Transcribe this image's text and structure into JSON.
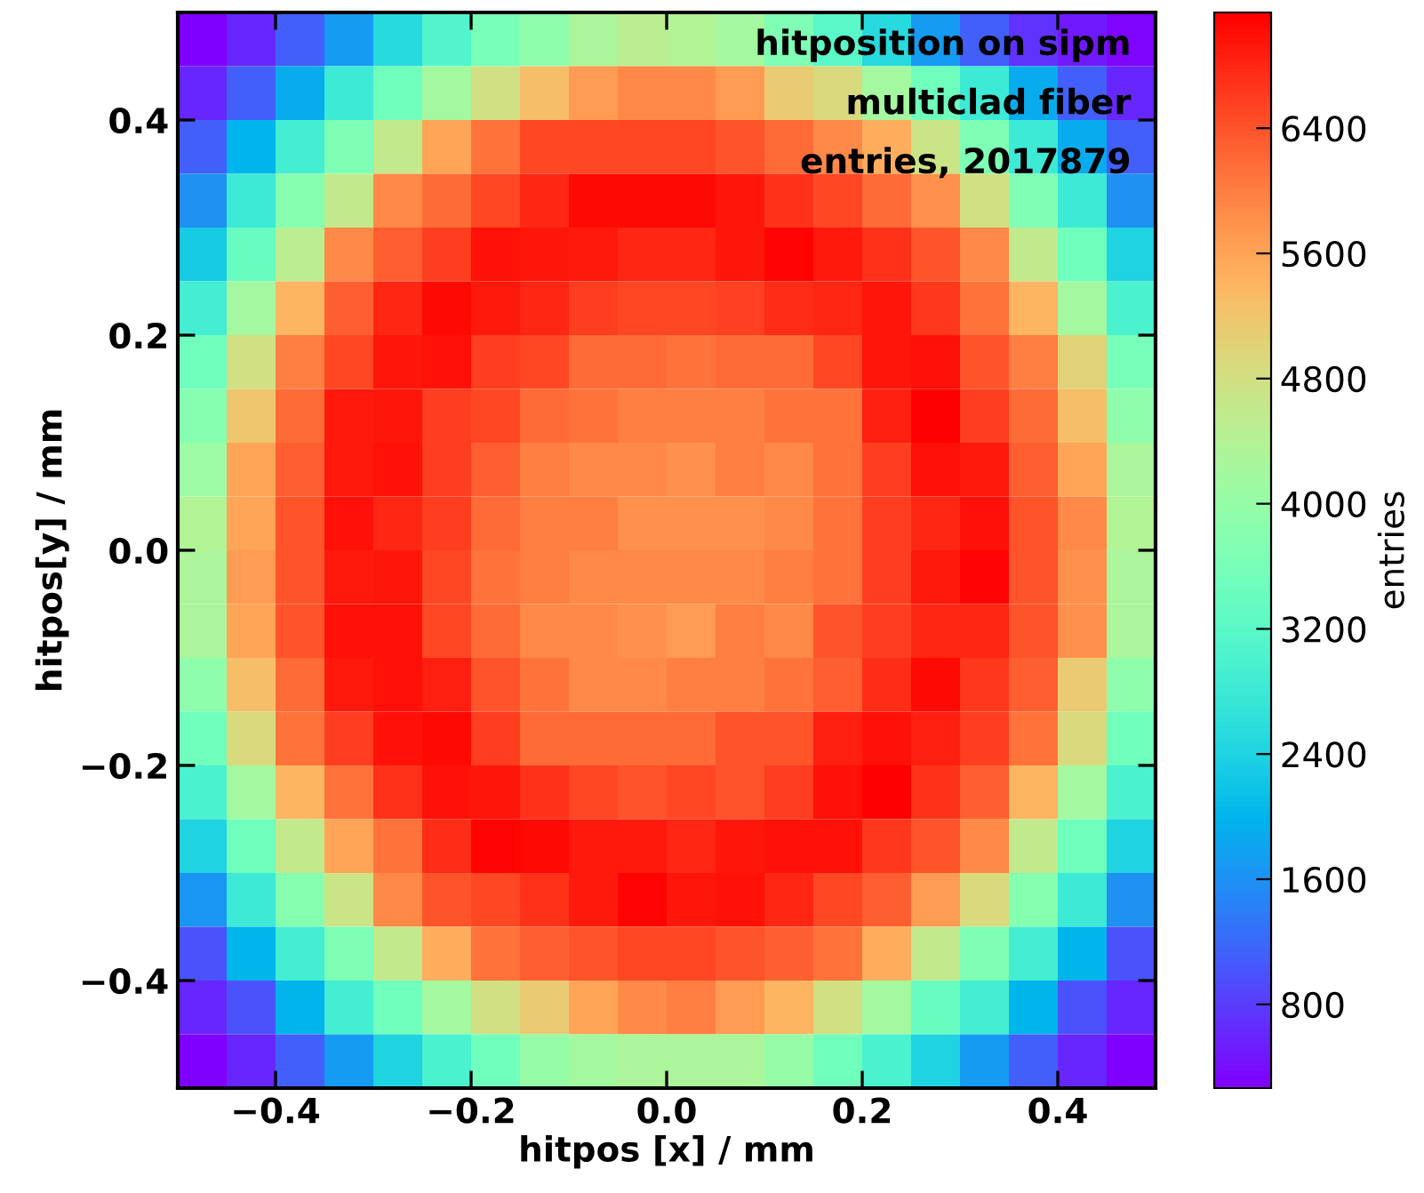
{
  "chart_data": {
    "type": "heatmap",
    "xlabel": "hitpos [x] / mm",
    "ylabel": "hitpos[y] / mm",
    "clabel": "entries",
    "annotations": [
      "hitposition on sipm",
      "multiclad fiber",
      "entries, 2017879"
    ],
    "xlim": [
      -0.5,
      0.5
    ],
    "ylim": [
      -0.5,
      0.5
    ],
    "xticks": [
      {
        "value": -0.4,
        "label": "−0.4"
      },
      {
        "value": -0.2,
        "label": "−0.2"
      },
      {
        "value": 0,
        "label": "0.0"
      },
      0.2,
      0.4
    ],
    "yticks": [
      {
        "value": -0.4,
        "label": "−0.4"
      },
      {
        "value": -0.2,
        "label": "−0.2"
      },
      {
        "value": 0,
        "label": "0.0"
      },
      0.2,
      0.4
    ],
    "clim": [
      265,
      7140
    ],
    "cticks": [
      800,
      1600,
      2400,
      3200,
      4000,
      4800,
      5600,
      6400
    ],
    "grid": false,
    "cells": [
      [
        265,
        600,
        1100,
        1700,
        2500,
        3100,
        3600,
        3900,
        4300,
        4500,
        4400,
        4200,
        3700,
        3200,
        2500,
        1700,
        1100,
        700,
        500,
        300
      ],
      [
        600,
        1100,
        1900,
        2800,
        3500,
        4200,
        4800,
        5300,
        5700,
        5900,
        5900,
        5700,
        5100,
        4900,
        4200,
        3500,
        2800,
        1900,
        1100,
        600
      ],
      [
        1100,
        2000,
        2900,
        3700,
        4600,
        5600,
        6100,
        6500,
        6500,
        6500,
        6500,
        6400,
        6200,
        5900,
        5500,
        4700,
        3700,
        2800,
        1900,
        1100
      ],
      [
        1600,
        2800,
        3800,
        4600,
        5900,
        6200,
        6500,
        6800,
        7050,
        7050,
        7050,
        6950,
        6700,
        6500,
        6200,
        5800,
        4800,
        3700,
        2800,
        1600
      ],
      [
        2300,
        3400,
        4500,
        5900,
        6300,
        6600,
        7000,
        6950,
        6900,
        6800,
        6800,
        6950,
        7100,
        6900,
        6700,
        6400,
        5900,
        4600,
        3500,
        2400
      ],
      [
        2900,
        4200,
        5400,
        6300,
        6800,
        7050,
        6900,
        6800,
        6600,
        6500,
        6500,
        6550,
        6750,
        6800,
        6950,
        6650,
        6100,
        5400,
        4200,
        3000
      ],
      [
        3500,
        4800,
        6000,
        6500,
        6950,
        7000,
        6600,
        6500,
        6200,
        6200,
        6100,
        6200,
        6200,
        6500,
        6950,
        7000,
        6400,
        6000,
        5000,
        3600
      ],
      [
        3800,
        5200,
        6200,
        6900,
        6950,
        6600,
        6500,
        6200,
        6100,
        6000,
        6000,
        6000,
        6100,
        6100,
        6850,
        7140,
        6600,
        6200,
        5300,
        3900
      ],
      [
        4100,
        5600,
        6300,
        6900,
        7000,
        6600,
        6300,
        6000,
        5900,
        5900,
        5800,
        6000,
        5900,
        6100,
        6600,
        7000,
        6900,
        6300,
        5600,
        4300
      ],
      [
        4400,
        5600,
        6400,
        7000,
        6800,
        6600,
        6200,
        6000,
        6000,
        5800,
        5800,
        5800,
        5900,
        6100,
        6600,
        6800,
        7000,
        6400,
        5900,
        4400
      ],
      [
        4300,
        5700,
        6400,
        6900,
        6950,
        6500,
        6100,
        6000,
        5900,
        5900,
        5900,
        5900,
        6000,
        6100,
        6600,
        6900,
        7100,
        6400,
        5800,
        4300
      ],
      [
        4300,
        5600,
        6400,
        7000,
        7000,
        6500,
        6200,
        5900,
        5900,
        5800,
        5700,
        6000,
        5900,
        6400,
        6600,
        6800,
        6800,
        6400,
        5800,
        4300
      ],
      [
        3900,
        5300,
        6200,
        6900,
        7000,
        6850,
        6400,
        6100,
        5900,
        5900,
        6000,
        6000,
        6100,
        6300,
        6750,
        7050,
        6650,
        6300,
        5100,
        3900
      ],
      [
        3500,
        4900,
        6100,
        6600,
        7000,
        7050,
        6600,
        6200,
        6200,
        6200,
        6200,
        6400,
        6400,
        6850,
        7000,
        6850,
        6600,
        6100,
        4900,
        3500
      ],
      [
        3000,
        4200,
        5400,
        6100,
        6700,
        7000,
        6950,
        6700,
        6500,
        6400,
        6500,
        6400,
        6600,
        7000,
        7140,
        6700,
        6300,
        5400,
        4200,
        3000
      ],
      [
        2400,
        3500,
        4600,
        5600,
        6100,
        6750,
        7100,
        7050,
        6900,
        6900,
        6800,
        6950,
        7000,
        7000,
        6650,
        6400,
        5900,
        4600,
        3500,
        2400
      ],
      [
        1650,
        2800,
        3800,
        4700,
        5900,
        6400,
        6500,
        6700,
        6900,
        7100,
        6950,
        7000,
        6800,
        6500,
        6300,
        5700,
        4900,
        3800,
        2800,
        1600
      ],
      [
        1000,
        2000,
        2900,
        3700,
        4600,
        5500,
        6100,
        6300,
        6400,
        6500,
        6500,
        6400,
        6300,
        6100,
        5500,
        4600,
        3700,
        2900,
        2000,
        1000
      ],
      [
        600,
        1000,
        2000,
        2900,
        3500,
        4200,
        4800,
        5100,
        5600,
        5900,
        6000,
        5700,
        5400,
        4800,
        4200,
        3400,
        2900,
        2000,
        1000,
        600
      ],
      [
        265,
        600,
        1100,
        1700,
        2400,
        3000,
        3500,
        4000,
        4200,
        4300,
        4300,
        4300,
        4000,
        3500,
        3000,
        2400,
        1700,
        1100,
        600,
        265
      ]
    ]
  }
}
